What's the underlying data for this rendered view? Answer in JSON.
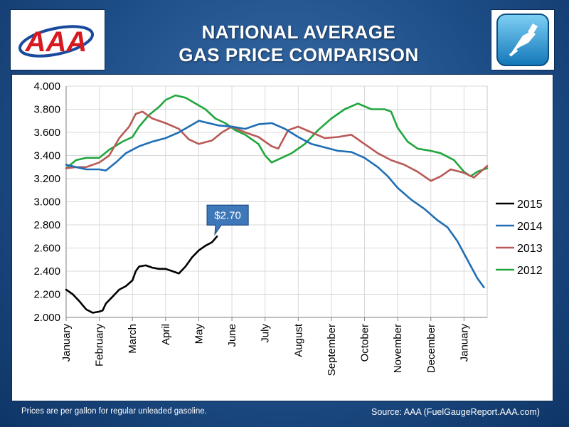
{
  "header": {
    "title_line1": "NATIONAL AVERAGE",
    "title_line2": "GAS PRICE COMPARISON",
    "logo_text": "AAA",
    "logo_colors": {
      "red": "#d71920",
      "blue": "#1a4a9c"
    },
    "icon": "gas-pump-icon"
  },
  "footer": {
    "note": "Prices are per gallon for regular unleaded gasoline.",
    "source": "Source: AAA (FuelGaugeReport.AAA.com)"
  },
  "chart_data": {
    "type": "line",
    "title": "",
    "xlabel": "",
    "ylabel": "",
    "ylim": [
      2.0,
      4.0
    ],
    "yticks": [
      "2.000",
      "2.200",
      "2.400",
      "2.600",
      "2.800",
      "3.000",
      "3.200",
      "3.400",
      "3.600",
      "3.800",
      "4.000"
    ],
    "months": [
      "January",
      "February",
      "March",
      "April",
      "May",
      "June",
      "July",
      "August",
      "September",
      "October",
      "November",
      "December",
      "January"
    ],
    "grid": true,
    "legend_position": "right",
    "callout": {
      "label": "$2.70",
      "series": "2015",
      "month": 4.55,
      "value": 2.7
    },
    "series": [
      {
        "name": "2015",
        "color": "#000000",
        "points": [
          [
            0.0,
            2.24
          ],
          [
            0.2,
            2.2
          ],
          [
            0.4,
            2.14
          ],
          [
            0.6,
            2.07
          ],
          [
            0.8,
            2.04
          ],
          [
            1.0,
            2.05
          ],
          [
            1.1,
            2.06
          ],
          [
            1.2,
            2.12
          ],
          [
            1.4,
            2.18
          ],
          [
            1.6,
            2.24
          ],
          [
            1.8,
            2.27
          ],
          [
            2.0,
            2.32
          ],
          [
            2.1,
            2.4
          ],
          [
            2.2,
            2.44
          ],
          [
            2.4,
            2.45
          ],
          [
            2.6,
            2.43
          ],
          [
            2.8,
            2.42
          ],
          [
            3.0,
            2.42
          ],
          [
            3.2,
            2.4
          ],
          [
            3.4,
            2.38
          ],
          [
            3.6,
            2.44
          ],
          [
            3.8,
            2.52
          ],
          [
            4.0,
            2.58
          ],
          [
            4.2,
            2.62
          ],
          [
            4.4,
            2.65
          ],
          [
            4.55,
            2.7
          ]
        ]
      },
      {
        "name": "2014",
        "color": "#1f6eb5",
        "points": [
          [
            0.0,
            3.32
          ],
          [
            0.3,
            3.3
          ],
          [
            0.6,
            3.28
          ],
          [
            1.0,
            3.28
          ],
          [
            1.2,
            3.27
          ],
          [
            1.5,
            3.34
          ],
          [
            1.8,
            3.42
          ],
          [
            2.2,
            3.48
          ],
          [
            2.6,
            3.52
          ],
          [
            3.0,
            3.55
          ],
          [
            3.4,
            3.6
          ],
          [
            3.7,
            3.65
          ],
          [
            4.0,
            3.7
          ],
          [
            4.3,
            3.68
          ],
          [
            4.6,
            3.66
          ],
          [
            5.0,
            3.65
          ],
          [
            5.4,
            3.63
          ],
          [
            5.8,
            3.67
          ],
          [
            6.2,
            3.68
          ],
          [
            6.6,
            3.63
          ],
          [
            7.0,
            3.56
          ],
          [
            7.4,
            3.5
          ],
          [
            7.8,
            3.47
          ],
          [
            8.2,
            3.44
          ],
          [
            8.6,
            3.43
          ],
          [
            9.0,
            3.38
          ],
          [
            9.4,
            3.3
          ],
          [
            9.7,
            3.22
          ],
          [
            10.0,
            3.12
          ],
          [
            10.4,
            3.02
          ],
          [
            10.8,
            2.94
          ],
          [
            11.2,
            2.84
          ],
          [
            11.5,
            2.78
          ],
          [
            11.8,
            2.66
          ],
          [
            12.1,
            2.5
          ],
          [
            12.4,
            2.34
          ],
          [
            12.6,
            2.26
          ]
        ]
      },
      {
        "name": "2013",
        "color": "#b85a56",
        "points": [
          [
            0.0,
            3.29
          ],
          [
            0.3,
            3.3
          ],
          [
            0.6,
            3.3
          ],
          [
            1.0,
            3.34
          ],
          [
            1.3,
            3.4
          ],
          [
            1.6,
            3.55
          ],
          [
            1.9,
            3.65
          ],
          [
            2.1,
            3.76
          ],
          [
            2.3,
            3.78
          ],
          [
            2.6,
            3.72
          ],
          [
            3.0,
            3.68
          ],
          [
            3.4,
            3.63
          ],
          [
            3.7,
            3.54
          ],
          [
            4.0,
            3.5
          ],
          [
            4.4,
            3.53
          ],
          [
            4.7,
            3.6
          ],
          [
            5.0,
            3.65
          ],
          [
            5.4,
            3.6
          ],
          [
            5.8,
            3.56
          ],
          [
            6.2,
            3.48
          ],
          [
            6.4,
            3.46
          ],
          [
            6.7,
            3.62
          ],
          [
            7.0,
            3.65
          ],
          [
            7.4,
            3.6
          ],
          [
            7.8,
            3.55
          ],
          [
            8.2,
            3.56
          ],
          [
            8.6,
            3.58
          ],
          [
            9.0,
            3.5
          ],
          [
            9.4,
            3.42
          ],
          [
            9.8,
            3.36
          ],
          [
            10.2,
            3.32
          ],
          [
            10.6,
            3.26
          ],
          [
            11.0,
            3.18
          ],
          [
            11.3,
            3.22
          ],
          [
            11.6,
            3.28
          ],
          [
            12.0,
            3.25
          ],
          [
            12.3,
            3.21
          ],
          [
            12.5,
            3.26
          ],
          [
            12.7,
            3.31
          ]
        ]
      },
      {
        "name": "2012",
        "color": "#21a63d",
        "points": [
          [
            0.0,
            3.29
          ],
          [
            0.3,
            3.36
          ],
          [
            0.6,
            3.38
          ],
          [
            1.0,
            3.38
          ],
          [
            1.3,
            3.45
          ],
          [
            1.7,
            3.52
          ],
          [
            2.0,
            3.56
          ],
          [
            2.2,
            3.65
          ],
          [
            2.5,
            3.75
          ],
          [
            2.8,
            3.82
          ],
          [
            3.0,
            3.88
          ],
          [
            3.3,
            3.92
          ],
          [
            3.6,
            3.9
          ],
          [
            3.9,
            3.85
          ],
          [
            4.2,
            3.8
          ],
          [
            4.5,
            3.72
          ],
          [
            4.8,
            3.68
          ],
          [
            5.1,
            3.62
          ],
          [
            5.4,
            3.58
          ],
          [
            5.8,
            3.5
          ],
          [
            6.0,
            3.4
          ],
          [
            6.2,
            3.34
          ],
          [
            6.5,
            3.38
          ],
          [
            6.8,
            3.42
          ],
          [
            7.2,
            3.5
          ],
          [
            7.6,
            3.62
          ],
          [
            8.0,
            3.72
          ],
          [
            8.4,
            3.8
          ],
          [
            8.8,
            3.85
          ],
          [
            9.2,
            3.8
          ],
          [
            9.6,
            3.8
          ],
          [
            9.8,
            3.78
          ],
          [
            10.0,
            3.64
          ],
          [
            10.3,
            3.52
          ],
          [
            10.6,
            3.46
          ],
          [
            11.0,
            3.44
          ],
          [
            11.3,
            3.42
          ],
          [
            11.7,
            3.36
          ],
          [
            12.0,
            3.26
          ],
          [
            12.2,
            3.22
          ],
          [
            12.4,
            3.26
          ],
          [
            12.7,
            3.29
          ]
        ]
      }
    ]
  }
}
